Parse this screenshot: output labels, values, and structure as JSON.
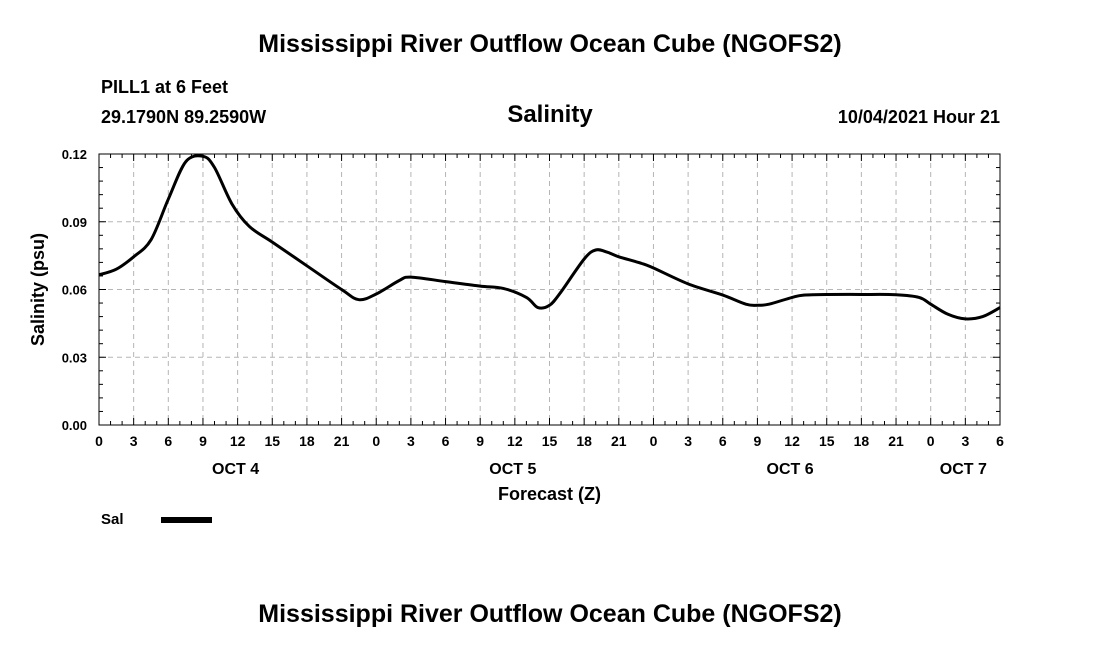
{
  "page": {
    "title_top": "Mississippi River Outflow Ocean Cube (NGOFS2)",
    "title_bottom": "Mississippi River Outflow Ocean Cube (NGOFS2)",
    "station_line": "PILL1 at 6 Feet",
    "coords_line": "29.1790N  89.2590W",
    "variable": "Salinity",
    "run_time": "10/04/2021 Hour 21"
  },
  "chart_data": {
    "type": "line",
    "title": "Salinity",
    "xlabel": "Forecast (Z)",
    "ylabel": "Salinity (psu)",
    "ylim": [
      0.0,
      0.12
    ],
    "xlim_hours": [
      0,
      78
    ],
    "yticks": [
      "0.00",
      "0.03",
      "0.06",
      "0.09",
      "0.12"
    ],
    "xtick_labels": [
      "0",
      "3",
      "6",
      "9",
      "12",
      "15",
      "18",
      "21",
      "0",
      "3",
      "6",
      "9",
      "12",
      "15",
      "18",
      "21",
      "0",
      "3",
      "6",
      "9",
      "12",
      "15",
      "18",
      "21",
      "0",
      "3",
      "6"
    ],
    "date_labels": [
      {
        "label": "OCT 4",
        "hour": 12
      },
      {
        "label": "OCT 5",
        "hour": 36
      },
      {
        "label": "OCT 6",
        "hour": 60
      },
      {
        "label": "OCT 7",
        "hour": 75
      }
    ],
    "grid": true,
    "legend": [
      {
        "name": "Sal",
        "color": "#000000"
      }
    ],
    "series": [
      {
        "name": "Sal",
        "color": "#000000",
        "x": [
          0,
          1.5,
          3,
          4.5,
          6,
          7.5,
          9,
          10,
          11.5,
          13,
          15,
          18,
          21,
          22.5,
          24,
          26,
          27,
          30,
          33,
          35,
          37,
          38,
          39,
          40,
          42,
          43,
          44,
          45,
          47,
          48,
          51,
          54,
          56,
          57,
          58,
          60,
          61,
          63,
          66,
          69,
          71,
          72,
          73.5,
          75,
          76.5,
          78
        ],
        "values": [
          0.0665,
          0.069,
          0.0745,
          0.082,
          0.1,
          0.1165,
          0.119,
          0.114,
          0.098,
          0.088,
          0.081,
          0.0705,
          0.06,
          0.0555,
          0.058,
          0.064,
          0.0655,
          0.0635,
          0.0615,
          0.0605,
          0.0565,
          0.052,
          0.053,
          0.059,
          0.0735,
          0.0775,
          0.0765,
          0.0745,
          0.0715,
          0.0695,
          0.0625,
          0.0575,
          0.0535,
          0.053,
          0.0535,
          0.0565,
          0.0575,
          0.0578,
          0.0578,
          0.0577,
          0.0565,
          0.0535,
          0.049,
          0.047,
          0.048,
          0.052
        ]
      }
    ]
  }
}
